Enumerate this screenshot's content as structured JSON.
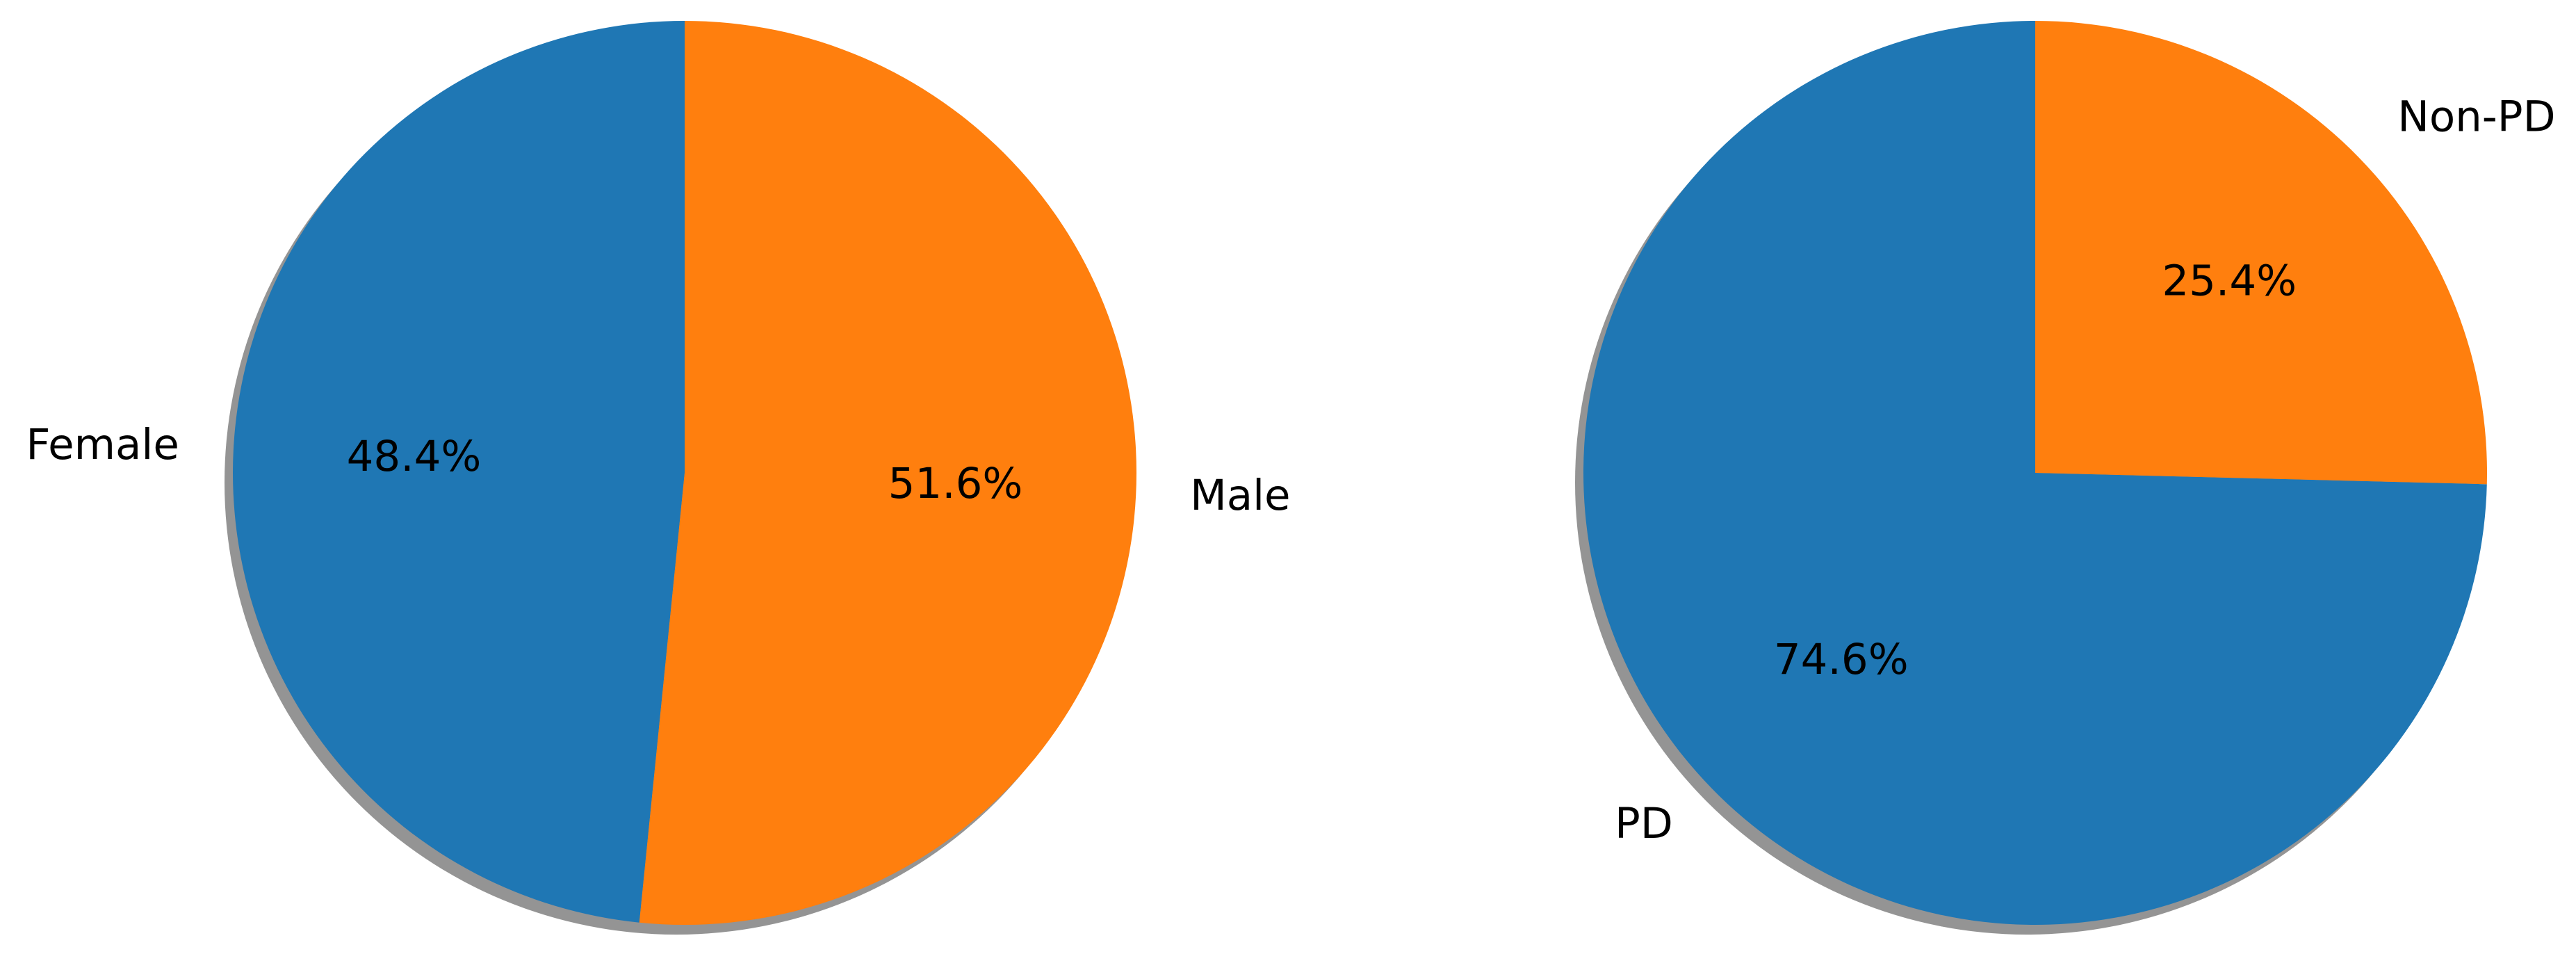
{
  "chart_data": [
    {
      "type": "pie",
      "categories": [
        "Female",
        "Male"
      ],
      "values": [
        48.4,
        51.6
      ],
      "percent_labels": [
        "48.4%",
        "51.6%"
      ],
      "colors": [
        "#1f77b4",
        "#ff7f0e"
      ],
      "start_angle_deg": 90,
      "direction": "counterclockwise",
      "shadow": true,
      "title": ""
    },
    {
      "type": "pie",
      "categories": [
        "PD",
        "Non-PD"
      ],
      "values": [
        74.6,
        25.4
      ],
      "percent_labels": [
        "74.6%",
        "25.4%"
      ],
      "colors": [
        "#1f77b4",
        "#ff7f0e"
      ],
      "start_angle_deg": 90,
      "direction": "counterclockwise",
      "shadow": true,
      "title": ""
    }
  ]
}
